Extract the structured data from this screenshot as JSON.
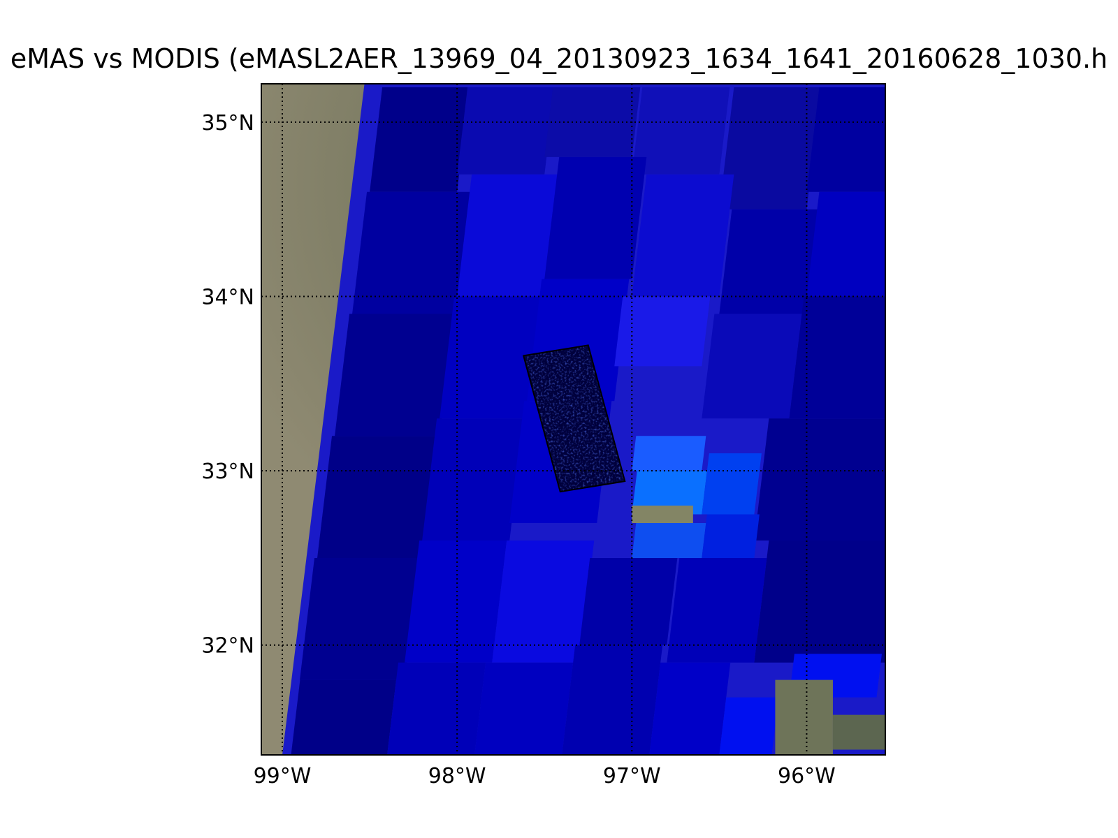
{
  "figure": {
    "title": "eMAS vs MODIS (eMASL2AER_13969_04_20130923_1634_1641_20160628_1030.h"
  },
  "map": {
    "projection": "cylindrical",
    "lon_range": [
      -99.12,
      -95.55
    ],
    "lat_range": [
      31.37,
      35.22
    ],
    "gridlines": "dotted",
    "graticule": {
      "lon_ticks": [
        {
          "value": -99,
          "label": "99°W"
        },
        {
          "value": -98,
          "label": "98°W"
        },
        {
          "value": -97,
          "label": "97°W"
        },
        {
          "value": -96,
          "label": "96°W"
        }
      ],
      "lat_ticks": [
        {
          "value": 35,
          "label": "35°N"
        },
        {
          "value": 34,
          "label": "34°N"
        },
        {
          "value": 33,
          "label": "33°N"
        },
        {
          "value": 32,
          "label": "32°N"
        }
      ]
    },
    "background_color": "#7d7e6c",
    "modis_swath": {
      "description_color": "#1a1ac8",
      "west_edge": [
        [
          -98.53,
          35.22
        ],
        [
          -99.0,
          31.37
        ]
      ],
      "east_edge": [
        [
          -95.55,
          35.22
        ],
        [
          -95.55,
          31.37
        ]
      ]
    },
    "modis_pixels": [
      {
        "lon": [
          -98.5,
          -98.0
        ],
        "lat": [
          34.6,
          35.2
        ],
        "color": "#00008a"
      },
      {
        "lon": [
          -98.0,
          -97.5
        ],
        "lat": [
          34.7,
          35.2
        ],
        "color": "#0a0ab0"
      },
      {
        "lon": [
          -97.5,
          -97.0
        ],
        "lat": [
          34.8,
          35.2
        ],
        "color": "#0c0ca8"
      },
      {
        "lon": [
          -97.0,
          -96.5
        ],
        "lat": [
          34.7,
          35.2
        ],
        "color": "#1010b8"
      },
      {
        "lon": [
          -96.5,
          -96.0
        ],
        "lat": [
          34.5,
          35.2
        ],
        "color": "#0a0aa0"
      },
      {
        "lon": [
          -96.0,
          -95.55
        ],
        "lat": [
          34.6,
          35.2
        ],
        "color": "#0000a0"
      },
      {
        "lon": [
          -98.6,
          -98.0
        ],
        "lat": [
          33.9,
          34.6
        ],
        "color": "#0000a0"
      },
      {
        "lon": [
          -98.0,
          -97.5
        ],
        "lat": [
          34.0,
          34.7
        ],
        "color": "#0a0ad8"
      },
      {
        "lon": [
          -97.5,
          -97.0
        ],
        "lat": [
          34.1,
          34.8
        ],
        "color": "#0000b0"
      },
      {
        "lon": [
          -97.0,
          -96.5
        ],
        "lat": [
          34.0,
          34.7
        ],
        "color": "#0c0cd0"
      },
      {
        "lon": [
          -96.5,
          -96.0
        ],
        "lat": [
          33.9,
          34.5
        ],
        "color": "#0000a8"
      },
      {
        "lon": [
          -96.0,
          -95.55
        ],
        "lat": [
          34.0,
          34.6
        ],
        "color": "#0000c0"
      },
      {
        "lon": [
          -98.7,
          -98.1
        ],
        "lat": [
          33.2,
          33.9
        ],
        "color": "#000090"
      },
      {
        "lon": [
          -98.1,
          -97.6
        ],
        "lat": [
          33.3,
          34.0
        ],
        "color": "#0000c0"
      },
      {
        "lon": [
          -97.6,
          -97.1
        ],
        "lat": [
          33.4,
          34.1
        ],
        "color": "#0000c8"
      },
      {
        "lon": [
          -97.1,
          -96.6
        ],
        "lat": [
          33.6,
          34.0
        ],
        "color": "#1a1ae8"
      },
      {
        "lon": [
          -96.6,
          -96.1
        ],
        "lat": [
          33.3,
          33.9
        ],
        "color": "#0a0ab8"
      },
      {
        "lon": [
          -96.1,
          -95.55
        ],
        "lat": [
          33.3,
          34.0
        ],
        "color": "#000098"
      },
      {
        "lon": [
          -98.8,
          -98.2
        ],
        "lat": [
          32.5,
          33.2
        ],
        "color": "#000088"
      },
      {
        "lon": [
          -98.2,
          -97.7
        ],
        "lat": [
          32.6,
          33.3
        ],
        "color": "#0000b8"
      },
      {
        "lon": [
          -97.7,
          -97.2
        ],
        "lat": [
          32.7,
          33.4
        ],
        "color": "#0000c8"
      },
      {
        "lon": [
          -97.0,
          -96.6
        ],
        "lat": [
          33.0,
          33.2
        ],
        "color": "#1a5cff"
      },
      {
        "lon": [
          -97.0,
          -96.6
        ],
        "lat": [
          32.75,
          33.0
        ],
        "color": "#0a70ff"
      },
      {
        "lon": [
          -96.6,
          -96.3
        ],
        "lat": [
          32.75,
          33.1
        ],
        "color": "#0040f0"
      },
      {
        "lon": [
          -96.3,
          -95.55
        ],
        "lat": [
          32.6,
          33.3
        ],
        "color": "#000090"
      },
      {
        "lon": [
          -97.0,
          -96.6
        ],
        "lat": [
          32.5,
          32.7
        ],
        "color": "#0e4ef0"
      },
      {
        "lon": [
          -96.6,
          -96.3
        ],
        "lat": [
          32.5,
          32.75
        ],
        "color": "#0020e0"
      },
      {
        "lon": [
          -98.9,
          -98.3
        ],
        "lat": [
          31.8,
          32.5
        ],
        "color": "#000090"
      },
      {
        "lon": [
          -98.3,
          -97.8
        ],
        "lat": [
          31.9,
          32.6
        ],
        "color": "#0000c8"
      },
      {
        "lon": [
          -97.8,
          -97.3
        ],
        "lat": [
          31.9,
          32.6
        ],
        "color": "#0a0ae0"
      },
      {
        "lon": [
          -97.3,
          -96.8
        ],
        "lat": [
          32.0,
          32.5
        ],
        "color": "#0000a8"
      },
      {
        "lon": [
          -96.8,
          -96.3
        ],
        "lat": [
          31.9,
          32.5
        ],
        "color": "#0000b8"
      },
      {
        "lon": [
          -96.3,
          -95.55
        ],
        "lat": [
          31.9,
          32.6
        ],
        "color": "#00008a"
      },
      {
        "lon": [
          -98.95,
          -98.4
        ],
        "lat": [
          31.37,
          31.8
        ],
        "color": "#000088"
      },
      {
        "lon": [
          -98.4,
          -97.9
        ],
        "lat": [
          31.37,
          31.9
        ],
        "color": "#0000b8"
      },
      {
        "lon": [
          -97.9,
          -97.4
        ],
        "lat": [
          31.37,
          31.9
        ],
        "color": "#0000c0"
      },
      {
        "lon": [
          -97.4,
          -96.9
        ],
        "lat": [
          31.37,
          32.0
        ],
        "color": "#0000b0"
      },
      {
        "lon": [
          -96.9,
          -96.5
        ],
        "lat": [
          31.37,
          31.9
        ],
        "color": "#0000c8"
      },
      {
        "lon": [
          -96.5,
          -96.2
        ],
        "lat": [
          31.37,
          31.7
        ],
        "color": "#0010f0"
      },
      {
        "lon": [
          -96.1,
          -95.6
        ],
        "lat": [
          31.7,
          31.95
        ],
        "color": "#0010f0"
      }
    ],
    "gaps": [
      {
        "lon": [
          -97.0,
          -96.65
        ],
        "lat": [
          32.7,
          32.8
        ],
        "color": "#838565"
      },
      {
        "lon": [
          -96.18,
          -95.85
        ],
        "lat": [
          31.37,
          31.8
        ],
        "color": "#6e7459"
      },
      {
        "lon": [
          -95.85,
          -95.55
        ],
        "lat": [
          31.4,
          31.6
        ],
        "color": "#5c6650"
      }
    ],
    "emas_footprint": {
      "corners": [
        [
          -97.62,
          33.66
        ],
        [
          -97.25,
          33.72
        ],
        [
          -97.04,
          32.94
        ],
        [
          -97.41,
          32.88
        ]
      ],
      "fill_color": "#00003c",
      "outline_color": "#000000"
    }
  }
}
